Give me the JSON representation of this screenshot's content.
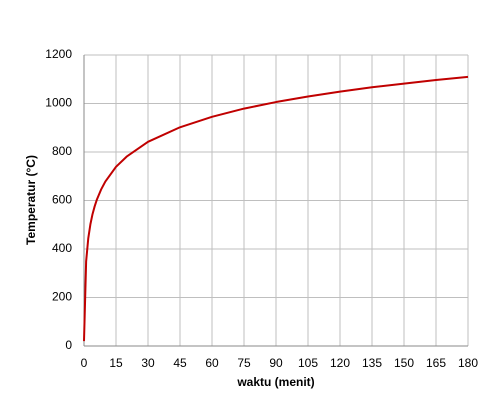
{
  "chart_data": {
    "type": "line",
    "x_label": "waktu (menit)",
    "y_label": "Temperatur (°C)",
    "x": [
      0,
      1,
      2,
      3,
      4,
      5,
      6,
      8,
      10,
      15,
      20,
      30,
      45,
      60,
      75,
      90,
      105,
      120,
      135,
      150,
      165,
      180
    ],
    "series": [
      {
        "color": "#c00000",
        "values": [
          20,
          349,
          444,
          502,
          544,
          576,
          603,
          645,
          678,
          739,
          781,
          842,
          902,
          945,
          979,
          1006,
          1029,
          1049,
          1067,
          1082,
          1097,
          1110
        ]
      }
    ],
    "xlim": [
      0,
      180
    ],
    "xticks": [
      0,
      15,
      30,
      45,
      60,
      75,
      90,
      105,
      120,
      135,
      150,
      165,
      180
    ],
    "ylim": [
      0,
      1200
    ],
    "yticks": [
      0,
      200,
      400,
      600,
      800,
      1000,
      1200
    ],
    "grid": true
  }
}
